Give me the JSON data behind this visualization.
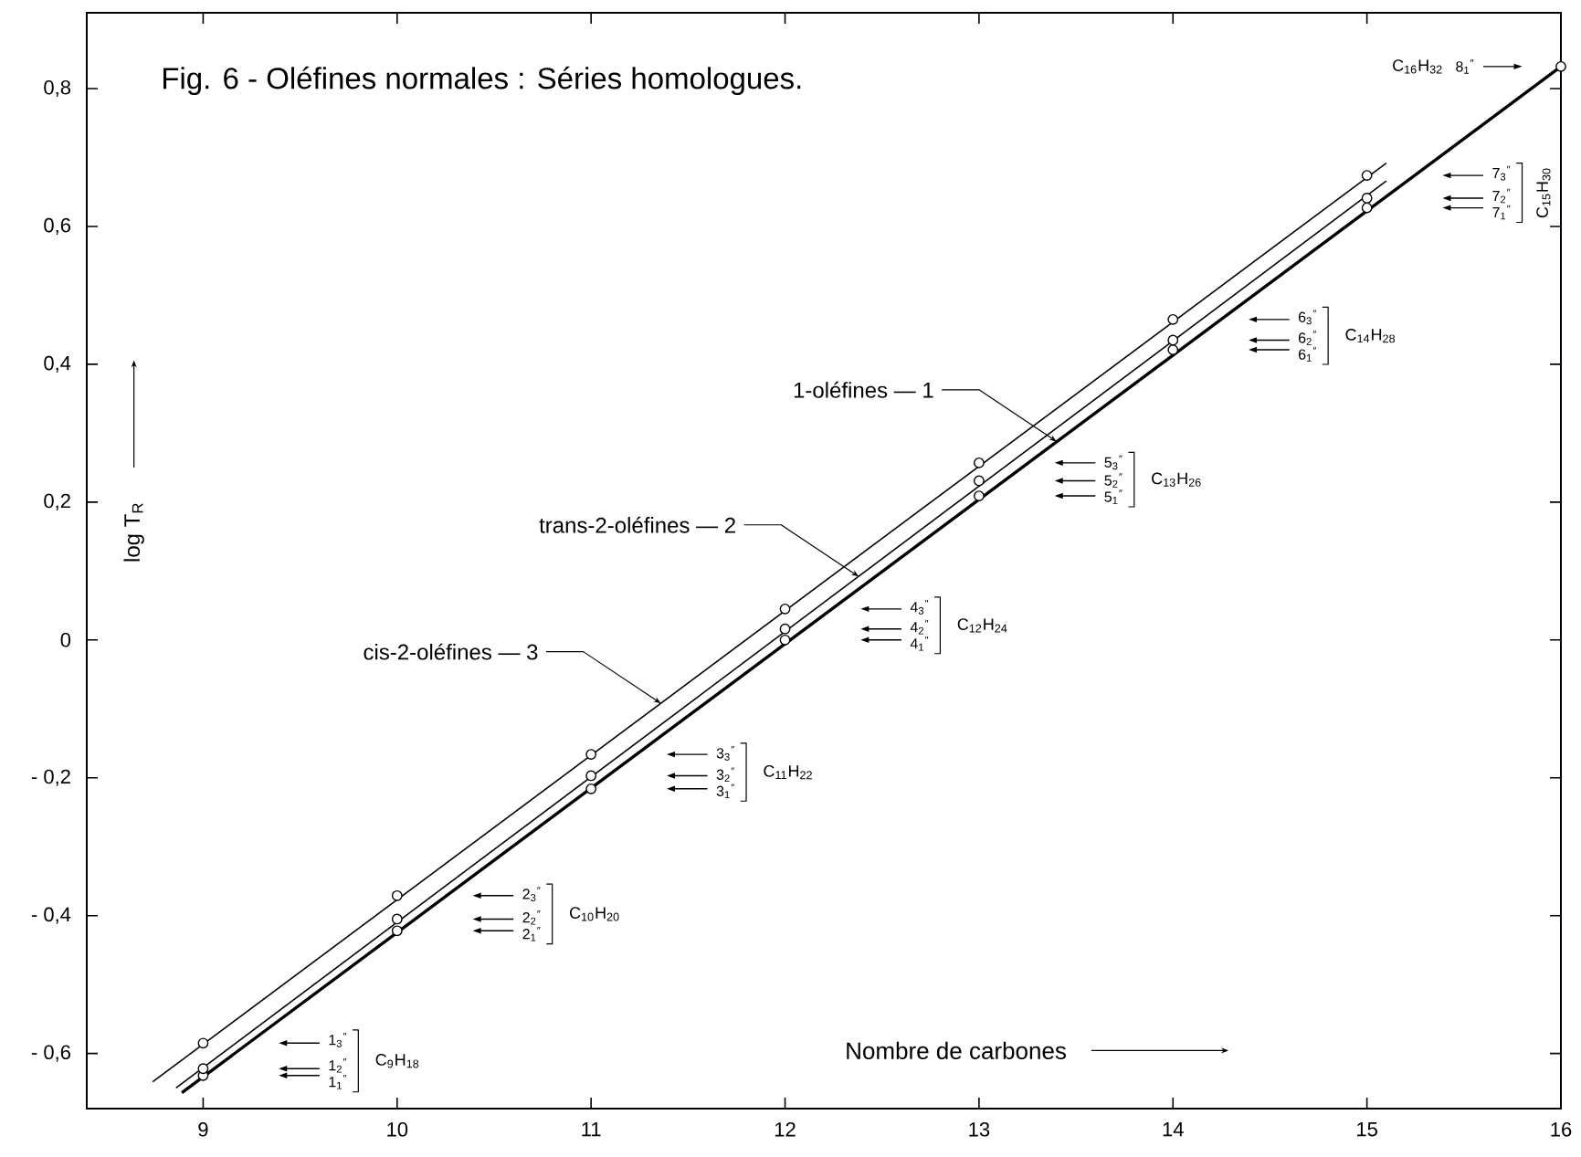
{
  "chart_data": {
    "type": "scatter",
    "title": "Fig. 6 - Oléfines normales : Séries homologues.",
    "xlabel": "Nombre de carbones",
    "ylabel": "log T$_{R}$",
    "x": [
      9,
      10,
      11,
      12,
      13,
      14,
      15,
      16
    ],
    "xlim": [
      8.4,
      16
    ],
    "ylim": [
      -0.68,
      0.91
    ],
    "xticks": [
      9,
      10,
      11,
      12,
      13,
      14,
      15,
      16
    ],
    "yticks": [
      {
        "value": -0.6,
        "label": "- 0,6"
      },
      {
        "value": -0.4,
        "label": "- 0,4"
      },
      {
        "value": -0.2,
        "label": "- 0,2"
      },
      0,
      {
        "value": 0.2,
        "label": "0,2"
      },
      {
        "value": 0.4,
        "label": "0,4"
      },
      {
        "value": 0.6,
        "label": "0,6"
      },
      {
        "value": 0.8,
        "label": "0,8"
      }
    ],
    "series": [
      {
        "type": "line",
        "color": "#000000",
        "x": [
          8.89,
          16
        ],
        "values": [
          -0.657,
          0.832
        ]
      },
      {
        "type": "line",
        "color": "#000000",
        "x": [
          8.86,
          15.1
        ],
        "values": [
          -0.65,
          0.666
        ]
      },
      {
        "type": "line",
        "color": "#000000",
        "x": [
          8.74,
          15.1
        ],
        "values": [
          -0.641,
          0.692
        ]
      },
      {
        "color": "#000000",
        "marker": "circle",
        "values": [
          -0.632,
          -0.422,
          -0.216,
          0,
          0.209,
          0.421,
          0.627,
          0.832
        ]
      },
      {
        "color": "#000000",
        "marker": "circle",
        "values": [
          -0.622,
          -0.405,
          -0.197,
          0.016,
          0.231,
          0.435,
          0.641,
          null
        ]
      },
      {
        "color": "#000000",
        "marker": "circle",
        "values": [
          -0.585,
          -0.371,
          -0.166,
          0.045,
          0.257,
          0.465,
          0.674,
          null
        ]
      }
    ],
    "annotations": [
      {
        "text": "1-oléfines — 1",
        "x": 13.4,
        "y": 0.288
      },
      {
        "text": "trans-2-oléfines — 2",
        "x": 12.38,
        "y": 0.092
      },
      {
        "text": "cis-2-oléfines — 3",
        "x": 11.36,
        "y": -0.092
      },
      "1$_{3}$$^{″}$",
      "1$_{2}$$^{″}$",
      "1$_{1}$$^{″}$",
      "C$_{9}$H$_{18}$",
      "2$_{3}$$^{″}$",
      "2$_{2}$$^{″}$",
      "2$_{1}$$^{″}$",
      "C$_{10}$H$_{20}$",
      "3$_{3}$$^{″}$",
      "3$_{2}$$^{″}$",
      "3$_{1}$$^{″}$",
      "C$_{11}$H$_{22}$",
      "4$_{3}$$^{″}$",
      "4$_{2}$$^{″}$",
      "4$_{1}$$^{″}$",
      "C$_{12}$H$_{24}$",
      "5$_{3}$$^{″}$",
      "5$_{2}$$^{″}$",
      "5$_{1}$$^{″}$",
      "C$_{13}$H$_{26}$",
      "6$_{3}$$^{″}$",
      "6$_{2}$$^{″}$",
      "6$_{1}$$^{″}$",
      "C$_{14}$H$_{28}$",
      "7$_{3}$$^{″}$",
      "7$_{2}$$^{″}$",
      "7$_{1}$$^{″}$",
      "C$_{15}$H$_{30}$",
      "8$_{1}$$^{″}$",
      "C$_{16}$H$_{32}$"
    ]
  }
}
